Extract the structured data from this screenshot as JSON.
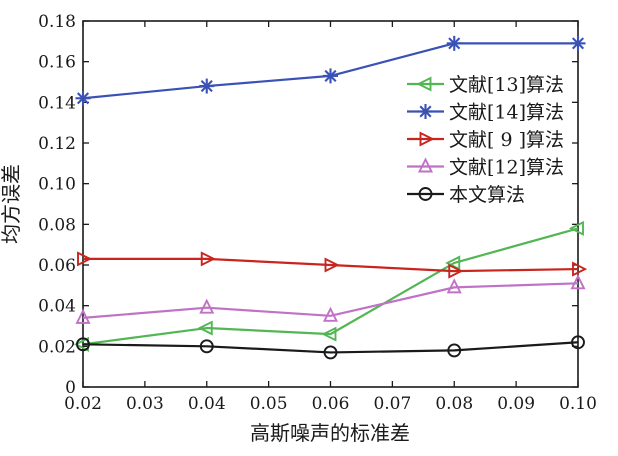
{
  "chart_data": {
    "type": "line",
    "x": [
      0.02,
      0.04,
      0.06,
      0.08,
      0.1
    ],
    "series": [
      {
        "name": "文献[13]算法",
        "values": [
          0.021,
          0.029,
          0.026,
          0.061,
          0.078
        ],
        "color": "#53b654",
        "marker": "triangle-left"
      },
      {
        "name": "文献[14]算法",
        "values": [
          0.142,
          0.148,
          0.153,
          0.169,
          0.169
        ],
        "color": "#3a51b5",
        "marker": "asterisk"
      },
      {
        "name": "文献[ 9 ]算法",
        "values": [
          0.063,
          0.063,
          0.06,
          0.057,
          0.058
        ],
        "color": "#c9251f",
        "marker": "triangle-right"
      },
      {
        "name": "文献[12]算法",
        "values": [
          0.034,
          0.039,
          0.035,
          0.049,
          0.051
        ],
        "color": "#bf72c6",
        "marker": "triangle-up"
      },
      {
        "name": "本文算法",
        "values": [
          0.021,
          0.02,
          0.017,
          0.018,
          0.022
        ],
        "color": "#1a1a1a",
        "marker": "circle"
      }
    ],
    "title": "",
    "xlabel": "高斯噪声的标准差",
    "ylabel": "均方误差",
    "xlim": [
      0.02,
      0.1
    ],
    "ylim": [
      0,
      0.18
    ],
    "xticks": [
      0.02,
      0.03,
      0.04,
      0.05,
      0.06,
      0.07,
      0.08,
      0.09,
      0.1
    ],
    "yticks": [
      0,
      0.02,
      0.04,
      0.06,
      0.08,
      0.1,
      0.12,
      0.14,
      0.16,
      0.18
    ],
    "grid": false,
    "legend_position": "inside-right-upper",
    "axis_color": "#1a1a1a",
    "background_color": "#ffffff"
  }
}
